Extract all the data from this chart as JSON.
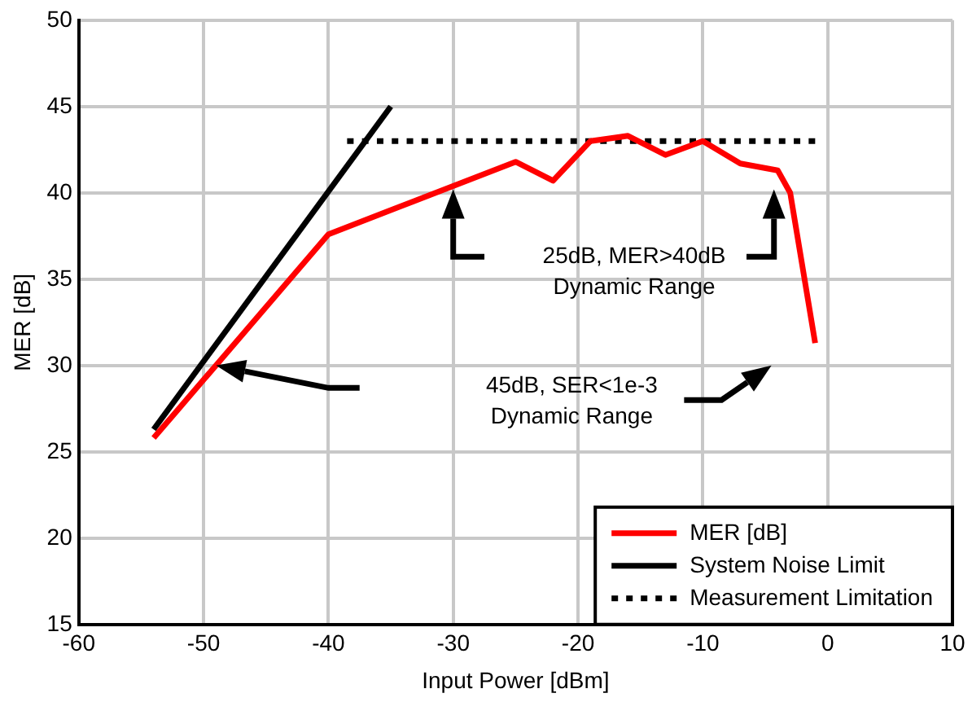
{
  "chart_data": {
    "type": "line",
    "xlabel": "Input Power [dBm]",
    "ylabel": "MER [dB]",
    "xlim": [
      -60,
      10
    ],
    "xticks": [
      -60,
      -50,
      -40,
      -30,
      -20,
      -10,
      0,
      10
    ],
    "ylim": [
      15,
      50
    ],
    "yticks": [
      15,
      20,
      25,
      30,
      35,
      40,
      45,
      50
    ],
    "grid": true,
    "legend": "bottom right",
    "marker": "none",
    "series": [
      {
        "name": "MER [dB]",
        "color": "#ff0000",
        "line_style": "solid",
        "x": [
          -54,
          -40,
          -25,
          -22,
          -19,
          -16,
          -13,
          -10,
          -7,
          -4,
          -3,
          -1
        ],
        "values": [
          25.8,
          37.6,
          41.8,
          40.7,
          43.0,
          43.3,
          42.2,
          43.0,
          41.7,
          41.3,
          40.0,
          31.3
        ]
      },
      {
        "name": "System Noise Limit",
        "color": "#000000",
        "line_style": "solid",
        "x": [
          -54,
          -35
        ],
        "values": [
          26.3,
          45
        ]
      },
      {
        "name": "Measurement Limitation",
        "color": "#000000",
        "line_style": "dotted",
        "x": [
          -38.5,
          -1
        ],
        "values": [
          43,
          43
        ]
      }
    ],
    "annotations": [
      "25dB, MER>40dB\nDynamic Range",
      "45dB, SER<1e-3\nDynamic Range"
    ]
  }
}
